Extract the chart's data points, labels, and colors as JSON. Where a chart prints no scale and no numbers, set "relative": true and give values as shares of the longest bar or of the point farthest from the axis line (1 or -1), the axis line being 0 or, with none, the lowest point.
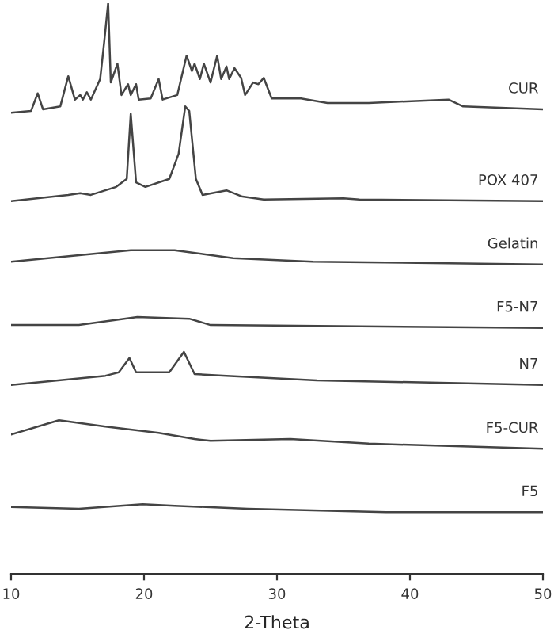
{
  "chart_data": {
    "type": "line",
    "relative": true,
    "xlabel": "2-Theta",
    "xlim": [
      10,
      50
    ],
    "xticks": [
      10,
      20,
      30,
      40,
      50
    ],
    "grid": false,
    "legend": false,
    "series": [
      {
        "name": "CUR",
        "color": "#444444",
        "x": [
          10.0,
          11.5,
          12.0,
          12.4,
          13.7,
          14.3,
          14.8,
          15.2,
          15.4,
          15.7,
          16.0,
          16.7,
          17.0,
          17.3,
          17.5,
          18.0,
          18.3,
          18.8,
          19.0,
          19.4,
          19.6,
          20.5,
          21.1,
          21.4,
          22.5,
          23.2,
          23.6,
          23.8,
          24.2,
          24.5,
          25.0,
          25.5,
          25.8,
          26.2,
          26.4,
          26.8,
          27.3,
          27.6,
          28.2,
          28.6,
          29.0,
          29.6,
          31.8,
          33.8,
          36.9,
          42.9,
          44.0,
          50.0
        ],
        "values": [
          0.808,
          0.811,
          0.842,
          0.814,
          0.819,
          0.872,
          0.831,
          0.839,
          0.831,
          0.844,
          0.831,
          0.867,
          0.931,
          1.0,
          0.861,
          0.894,
          0.839,
          0.858,
          0.839,
          0.858,
          0.831,
          0.833,
          0.867,
          0.831,
          0.839,
          0.908,
          0.881,
          0.894,
          0.867,
          0.894,
          0.861,
          0.908,
          0.867,
          0.889,
          0.867,
          0.886,
          0.869,
          0.839,
          0.861,
          0.858,
          0.869,
          0.833,
          0.833,
          0.825,
          0.825,
          0.831,
          0.819,
          0.814
        ]
      },
      {
        "name": "POX 407",
        "color": "#444444",
        "x": [
          10.0,
          14.3,
          15.2,
          16.0,
          17.9,
          18.7,
          19.0,
          19.4,
          20.1,
          21.9,
          22.6,
          23.1,
          23.4,
          23.9,
          24.4,
          26.2,
          27.4,
          29.0,
          35.0,
          36.2,
          50.0
        ],
        "values": [
          0.653,
          0.664,
          0.667,
          0.664,
          0.678,
          0.692,
          0.806,
          0.686,
          0.678,
          0.692,
          0.736,
          0.819,
          0.811,
          0.692,
          0.664,
          0.672,
          0.661,
          0.656,
          0.658,
          0.656,
          0.653
        ]
      },
      {
        "name": "Gelatin",
        "color": "#444444",
        "x": [
          10.0,
          19.0,
          22.3,
          26.7,
          32.7,
          50.0
        ],
        "values": [
          0.547,
          0.567,
          0.567,
          0.553,
          0.547,
          0.542
        ]
      },
      {
        "name": "F5-N7",
        "color": "#444444",
        "x": [
          10.0,
          15.1,
          19.5,
          23.4,
          25.0,
          50.0
        ],
        "values": [
          0.436,
          0.436,
          0.45,
          0.447,
          0.436,
          0.431
        ]
      },
      {
        "name": "N7",
        "color": "#444444",
        "x": [
          10.0,
          17.1,
          18.1,
          18.9,
          19.4,
          21.9,
          23.0,
          23.8,
          26.2,
          33.0,
          50.0
        ],
        "values": [
          0.331,
          0.347,
          0.353,
          0.378,
          0.353,
          0.353,
          0.389,
          0.35,
          0.347,
          0.339,
          0.331
        ]
      },
      {
        "name": "F5-CUR",
        "color": "#444444",
        "x": [
          10.0,
          13.6,
          17.1,
          21.1,
          23.8,
          25.0,
          31.0,
          36.9,
          50.0
        ],
        "values": [
          0.244,
          0.269,
          0.258,
          0.247,
          0.236,
          0.233,
          0.236,
          0.228,
          0.219
        ]
      },
      {
        "name": "F5",
        "color": "#444444",
        "x": [
          10.0,
          15.1,
          19.9,
          22.3,
          27.8,
          38.2,
          50.0
        ],
        "values": [
          0.117,
          0.114,
          0.122,
          0.119,
          0.114,
          0.108,
          0.108
        ]
      }
    ]
  }
}
